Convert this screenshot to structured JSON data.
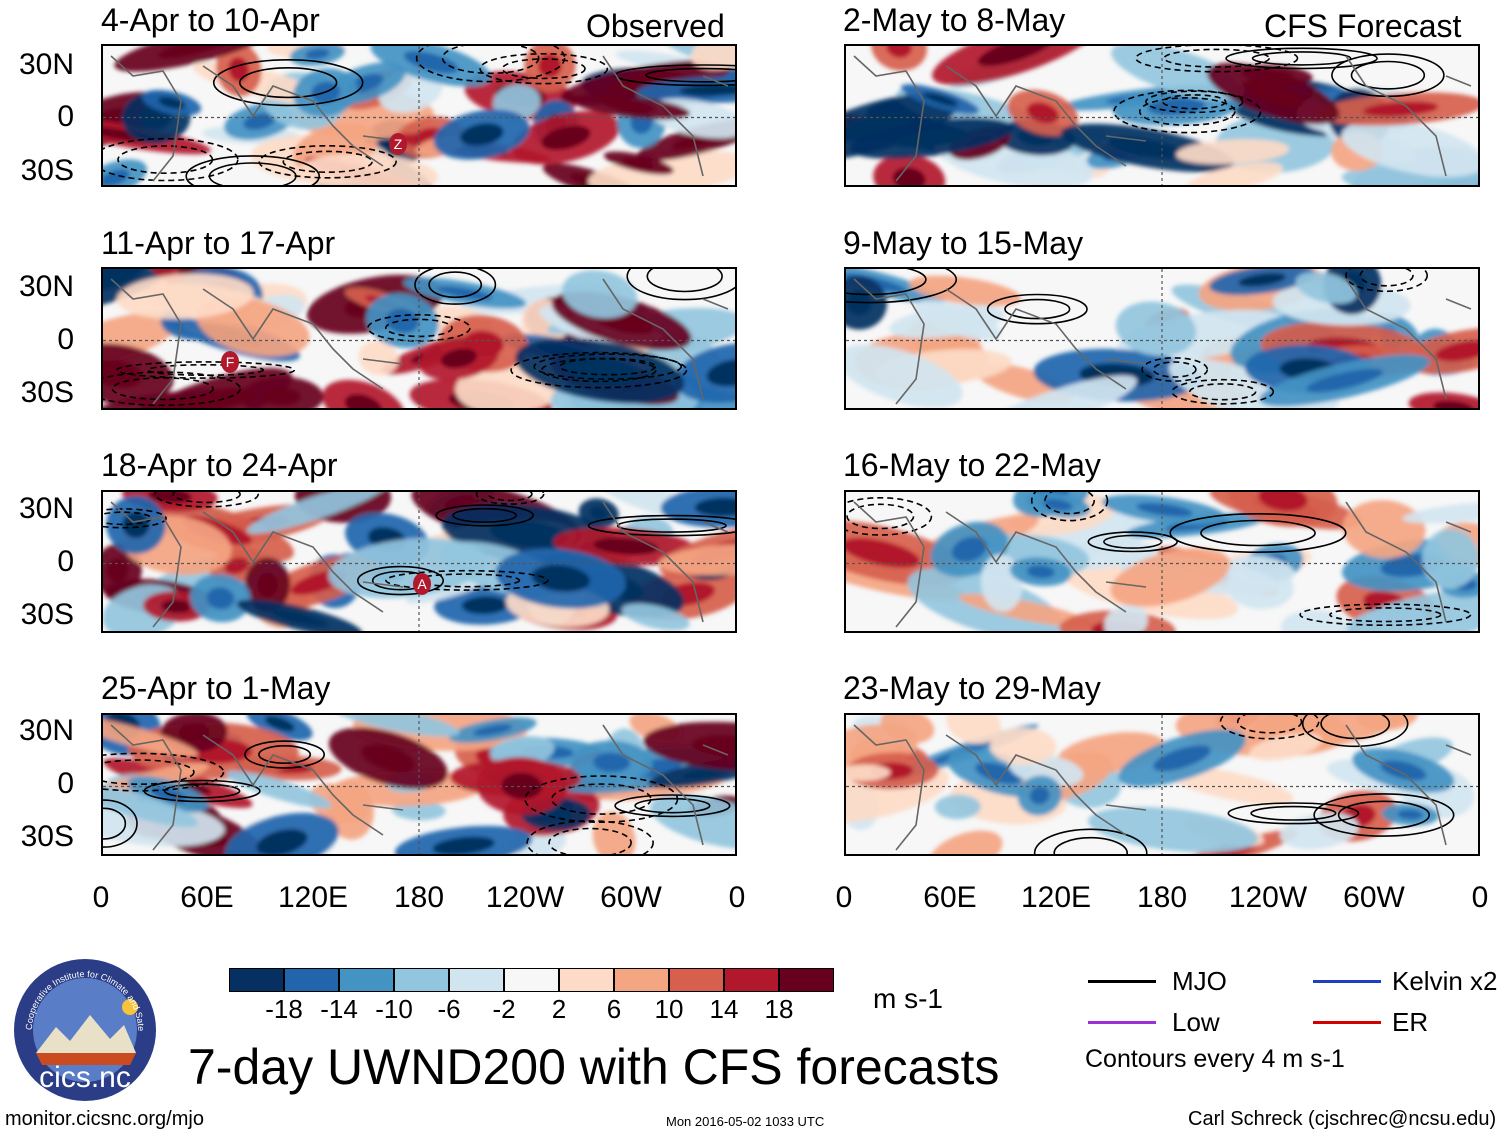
{
  "observed_label": "Observed",
  "forecast_label": "CFS Forecast",
  "observed_panels": [
    {
      "title": "4-Apr to 10-Apr",
      "storms": [
        "Z"
      ]
    },
    {
      "title": "11-Apr to 17-Apr",
      "storms": [
        "F"
      ]
    },
    {
      "title": "18-Apr to 24-Apr",
      "storms": [
        "A"
      ]
    },
    {
      "title": "25-Apr to 1-May",
      "storms": []
    }
  ],
  "forecast_panels": [
    {
      "title": "2-May to 8-May"
    },
    {
      "title": "9-May to 15-May"
    },
    {
      "title": "16-May to 22-May"
    },
    {
      "title": "23-May to 29-May"
    }
  ],
  "lat_labels": [
    "30N",
    "0",
    "30S"
  ],
  "lon_labels": [
    "0",
    "60E",
    "120E",
    "180",
    "120W",
    "60W",
    "0"
  ],
  "colorbar": {
    "ticks": [
      "-18",
      "-14",
      "-10",
      "-6",
      "-2",
      "2",
      "6",
      "10",
      "14",
      "18"
    ],
    "colors": [
      "#053061",
      "#2166ac",
      "#4393c3",
      "#92c5de",
      "#d1e5f0",
      "#f7f7f7",
      "#fddbc7",
      "#f4a582",
      "#d6604d",
      "#b2182b",
      "#67001f"
    ],
    "units": "m s-1"
  },
  "legend": {
    "items": [
      {
        "label": "MJO",
        "color": "#000000"
      },
      {
        "label": "Kelvin x2",
        "color": "#1f3fbf"
      },
      {
        "label": "Low",
        "color": "#9b30d9"
      },
      {
        "label": "ER",
        "color": "#d40000"
      }
    ],
    "contour_note": "Contours every 4 m s-1"
  },
  "logo": {
    "text": "cics.nc",
    "ring_text": "Cooperative Institute for Climate and Satellites"
  },
  "main_title": "7-day UWND200 with CFS forecasts",
  "footer": {
    "url": "monitor.cicsnc.org/mjo",
    "timestamp": "Mon 2016-05-02 1033 UTC",
    "author": "Carl Schreck (cjschrec@ncsu.edu)"
  }
}
